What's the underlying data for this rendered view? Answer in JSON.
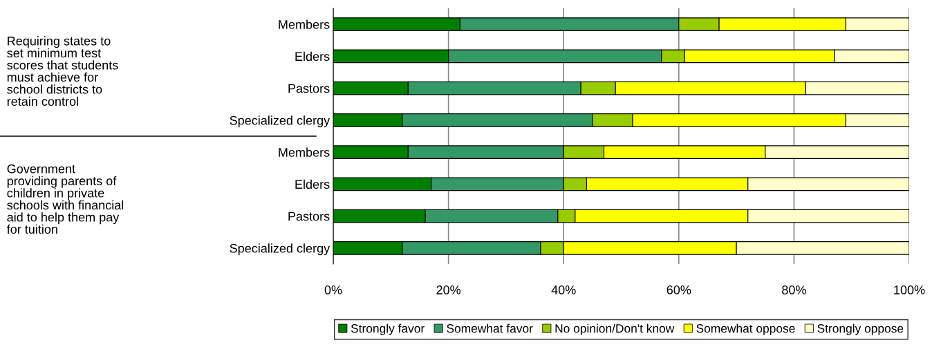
{
  "chart_data": {
    "type": "bar",
    "orientation": "horizontal",
    "stacked": true,
    "categories": [
      "Members",
      "Elders",
      "Pastors",
      "Specialized clergy",
      "Members",
      "Elders",
      "Pastors",
      "Specialized clergy"
    ],
    "series": [
      {
        "name": "Strongly favor",
        "color": "#008000",
        "values": [
          22,
          20,
          13,
          12,
          13,
          17,
          16,
          12
        ]
      },
      {
        "name": "Somewhat favor",
        "color": "#339966",
        "values": [
          38,
          37,
          30,
          33,
          27,
          23,
          23,
          24
        ]
      },
      {
        "name": "No opinion/Don't know",
        "color": "#99cc00",
        "values": [
          7,
          4,
          6,
          7,
          7,
          4,
          3,
          4
        ]
      },
      {
        "name": "Somewhat oppose",
        "color": "#ffff00",
        "values": [
          22,
          26,
          33,
          37,
          28,
          28,
          30,
          30
        ]
      },
      {
        "name": "Strongly oppose",
        "color": "#ffffcc",
        "values": [
          11,
          13,
          18,
          11,
          25,
          28,
          28,
          30
        ]
      }
    ],
    "xlim": [
      0,
      100
    ],
    "xticks": [
      {
        "value": 0,
        "label": "0%"
      },
      {
        "value": 20,
        "label": "20%"
      },
      {
        "value": 40,
        "label": "40%"
      },
      {
        "value": 60,
        "label": "60%"
      },
      {
        "value": 80,
        "label": "80%"
      },
      {
        "value": 100,
        "label": "100%"
      }
    ],
    "grid": "x",
    "legend": "bottom",
    "annotations": [
      "Requiring states to\nset minimum test\nscores that students\nmust achieve for\nschool districts to\nretain control",
      "Government\nproviding parents of\nchildren in private\nschools with financial\naid to help them pay\nfor tuition"
    ]
  }
}
